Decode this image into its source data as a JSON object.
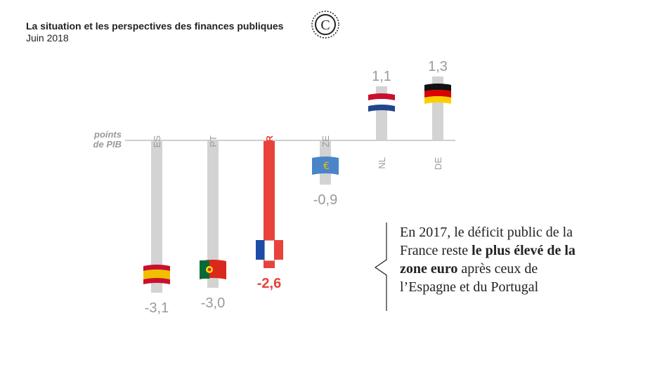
{
  "header": {
    "title": "La situation et les perspectives des finances publiques",
    "subtitle": "Juin 2018",
    "logo_letter": "C"
  },
  "chart_data": {
    "type": "bar",
    "ylabel_line1": "points",
    "ylabel_line2": "de PIB",
    "categories": [
      "ES",
      "PT",
      "FR",
      "ZE",
      "NL",
      "DE"
    ],
    "values": [
      -3.1,
      -3.0,
      -2.6,
      -0.9,
      1.1,
      1.3
    ],
    "value_labels": [
      "-3,1",
      "-3,0",
      "-2,6",
      "-0,9",
      "1,1",
      "1,3"
    ],
    "highlight": "FR",
    "flags": [
      "spain-flag",
      "portugal-flag",
      "france-flag",
      "euro-flag",
      "netherlands-flag",
      "germany-flag"
    ],
    "colors": {
      "bar": "#d3d3d3",
      "highlight": "#e8423a",
      "label": "#9a9a9a",
      "axis": "#cfcfcf"
    }
  },
  "callout": {
    "part1": "En 2017, le déficit public de la France reste ",
    "bold": "le plus élevé de la zone euro",
    "part2": " après ceux de l’Espagne et du Portugal"
  }
}
